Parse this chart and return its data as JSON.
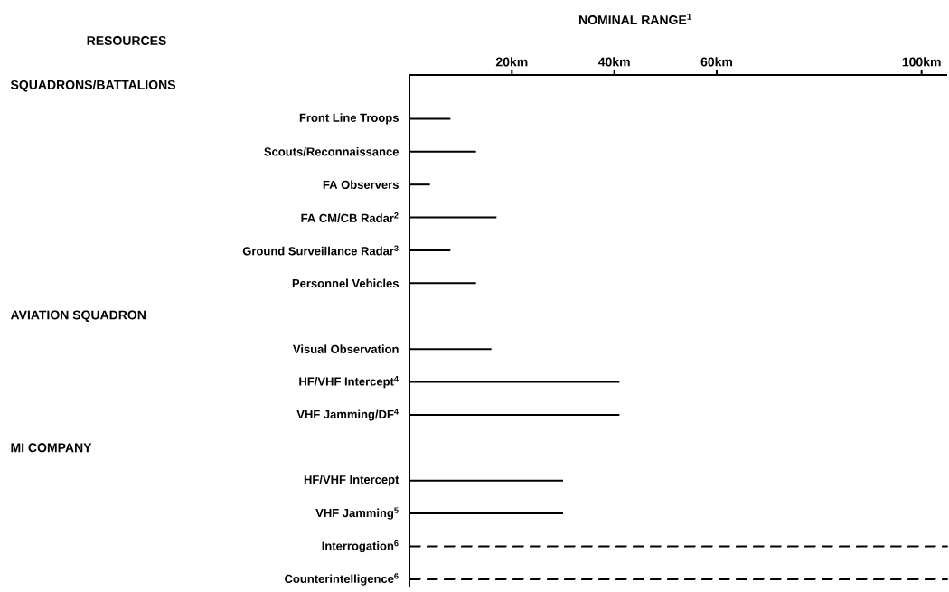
{
  "chart_data": {
    "type": "bar",
    "orientation": "horizontal",
    "xlabel": "NOMINAL RANGE$^{1}$",
    "categories": [
      null,
      "Front Line Troops",
      "Scouts/Reconnaissance",
      "FA Observers",
      "FA CM/CB Radar$^{2}$",
      "Ground Surveillance Radar$^{3}$",
      "Personnel Vehicles",
      null,
      "Visual Observation",
      "HF/VHF Intercept$^{4}$",
      "VHF Jamming/DF$^{4}$",
      null,
      "HF/VHF Intercept",
      "VHF Jamming$^{5}$",
      "Interrogation$^{6}$",
      "Counterintelligence$^{6}$"
    ],
    "series": [
      {
        "color": "#000000",
        "line_style": "solid",
        "values": [
          null,
          8,
          13,
          4,
          17,
          8,
          13,
          null,
          16,
          41,
          41,
          null,
          30,
          30,
          null,
          null
        ]
      },
      {
        "color": "#000000",
        "line_style": "dashed",
        "values": [
          null,
          null,
          null,
          null,
          null,
          null,
          null,
          null,
          null,
          null,
          null,
          null,
          null,
          null,
          105,
          105
        ]
      }
    ],
    "xlim": [
      0,
      105
    ],
    "xticks": [
      {
        "value": 20,
        "label": "20km"
      },
      {
        "value": 40,
        "label": "40km"
      },
      {
        "value": 60,
        "label": "60km"
      },
      {
        "value": 100,
        "label": "100km"
      }
    ],
    "annotations": [
      "RESOURCES",
      "SQUADRONS/BATTALIONS",
      "AVIATION SQUADRON",
      "MI COMPANY"
    ]
  }
}
